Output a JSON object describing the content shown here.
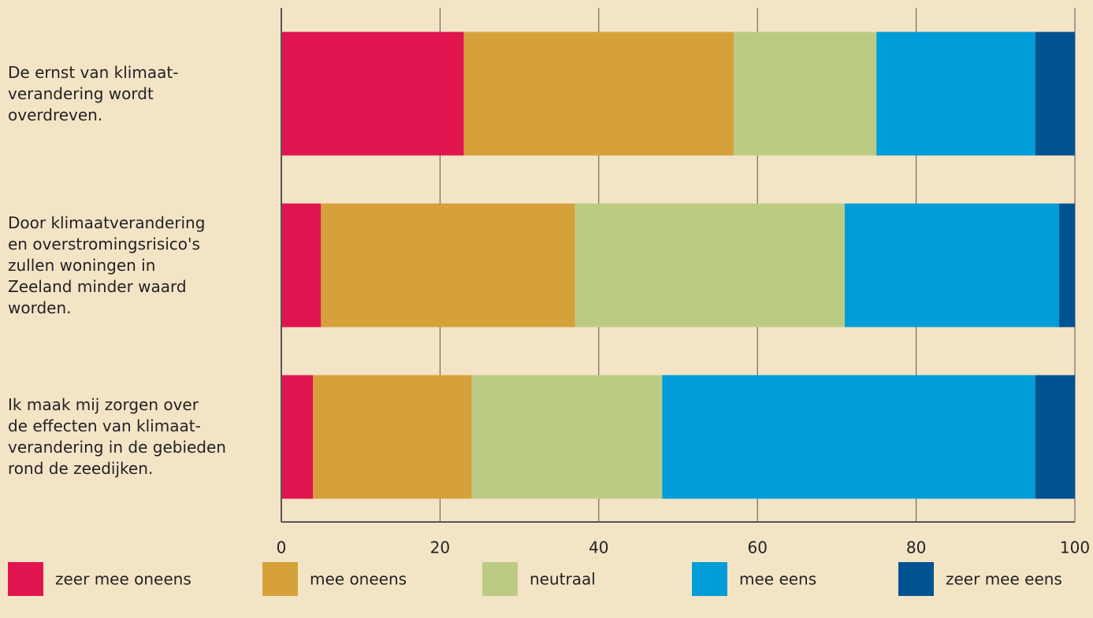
{
  "chart_data": {
    "type": "stacked_barh",
    "categories": [
      "De ernst van klimaat-\nverandering wordt\noverdreven.",
      "Door klimaatverandering\nen overstromingsrisico's\nzullen woningen in\nZeeland minder waard\nworden.",
      "Ik maak mij zorgen over\nde effecten van klimaat-\nverandering in de gebieden\nrond de zeedijken."
    ],
    "series": [
      {
        "name": "zeer mee oneens",
        "color": "#e0144f",
        "values": [
          23,
          5,
          4
        ]
      },
      {
        "name": "mee oneens",
        "color": "#d6a13a",
        "values": [
          34,
          32,
          20
        ]
      },
      {
        "name": "neutraal",
        "color": "#bccb84",
        "values": [
          18,
          34,
          24
        ]
      },
      {
        "name": "mee eens",
        "color": "#009dd8",
        "values": [
          20,
          27,
          47
        ]
      },
      {
        "name": "zeer mee eens",
        "color": "#005393",
        "values": [
          5,
          2,
          5
        ]
      }
    ],
    "xlim": [
      0,
      100
    ],
    "xticks": [
      0,
      20,
      40,
      60,
      80,
      100
    ],
    "grid": true,
    "legend": "bottom"
  }
}
